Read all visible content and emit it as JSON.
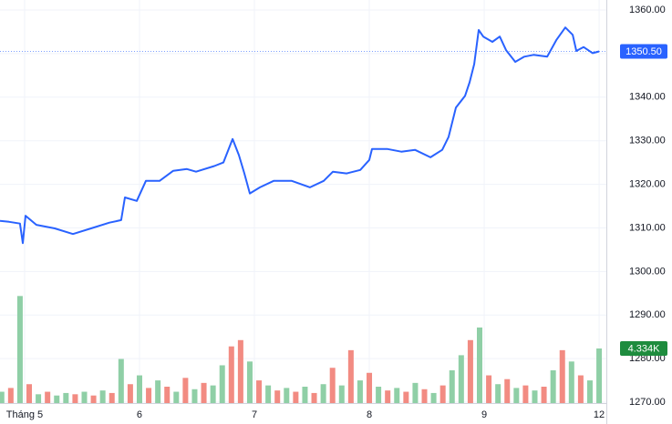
{
  "chart_data": {
    "type": "line",
    "color": "#2962ff",
    "x": [
      -0.214,
      -0.135,
      -0.04,
      -0.016,
      0.008,
      0.103,
      0.262,
      0.421,
      0.579,
      0.738,
      0.841,
      0.873,
      0.976,
      1.056,
      1.175,
      1.294,
      1.413,
      1.492,
      1.651,
      1.73,
      1.81,
      1.865,
      1.913,
      1.96,
      2.048,
      2.167,
      2.325,
      2.484,
      2.603,
      2.683,
      2.802,
      2.921,
      3,
      3.024,
      3.159,
      3.278,
      3.397,
      3.532,
      3.635,
      3.69,
      3.754,
      3.833,
      3.873,
      3.913,
      3.952,
      3.992,
      4.071,
      4.135,
      4.19,
      4.27,
      4.349,
      4.429,
      4.548,
      4.627,
      4.706,
      4.77,
      4.802,
      4.865,
      4.944,
      5
    ],
    "values": [
      1311.6,
      1311.4,
      1311,
      1306.5,
      1312.8,
      1310.7,
      1309.9,
      1308.6,
      1309.9,
      1311.2,
      1311.8,
      1317,
      1316.2,
      1320.8,
      1320.8,
      1323.1,
      1323.5,
      1322.9,
      1324.2,
      1325,
      1330.4,
      1326.7,
      1322.5,
      1317.9,
      1319.3,
      1320.8,
      1320.8,
      1319.3,
      1320.8,
      1322.9,
      1322.5,
      1323.3,
      1325.6,
      1328.1,
      1328.1,
      1327.5,
      1327.9,
      1326.2,
      1327.9,
      1330.9,
      1337.6,
      1340.3,
      1343.4,
      1347.6,
      1355.4,
      1353.9,
      1352.7,
      1353.9,
      1350.8,
      1348.1,
      1349.3,
      1349.7,
      1349.3,
      1353.1,
      1356,
      1354.3,
      1350.6,
      1351.5,
      1350.1,
      1350.5
    ],
    "xlim": [
      -0.214,
      5.063
    ],
    "xticks": [
      {
        "value": 0,
        "label": "Tháng 5"
      },
      {
        "value": 1,
        "label": "6"
      },
      {
        "value": 2,
        "label": "7"
      },
      {
        "value": 3,
        "label": "8"
      },
      {
        "value": 4,
        "label": "9"
      },
      {
        "value": 5,
        "label": "12"
      }
    ],
    "ylim": [
      1269.8,
      1362.3
    ],
    "yticks": [
      {
        "value": 1270,
        "label": "1270.00"
      },
      {
        "value": 1280,
        "label": "1280.00"
      },
      {
        "value": 1290,
        "label": "1290.00"
      },
      {
        "value": 1300,
        "label": "1300.00"
      },
      {
        "value": 1310,
        "label": "1310.00"
      },
      {
        "value": 1320,
        "label": "1320.00"
      },
      {
        "value": 1330,
        "label": "1330.00"
      },
      {
        "value": 1340,
        "label": "1340.00"
      },
      {
        "value": 1350,
        "label": "1350.00"
      },
      {
        "value": 1360,
        "label": "1360.00"
      }
    ],
    "grid": true,
    "price_marker": {
      "value": 1350.5,
      "label": "1350.50"
    },
    "y2lim": [
      0,
      32000
    ],
    "volume_marker": {
      "value": 4334,
      "label": "4.334K",
      "color": "#1e8c3e"
    },
    "volume": {
      "x": [
        -0.2,
        -0.12,
        -0.04,
        0.04,
        0.12,
        0.2,
        0.28,
        0.36,
        0.44,
        0.52,
        0.6,
        0.68,
        0.76,
        0.84,
        0.92,
        1.0,
        1.08,
        1.16,
        1.24,
        1.32,
        1.4,
        1.48,
        1.56,
        1.64,
        1.72,
        1.8,
        1.88,
        1.96,
        2.04,
        2.12,
        2.2,
        2.28,
        2.36,
        2.44,
        2.52,
        2.6,
        2.68,
        2.76,
        2.84,
        2.92,
        3.0,
        3.08,
        3.16,
        3.24,
        3.32,
        3.4,
        3.48,
        3.56,
        3.64,
        3.72,
        3.8,
        3.88,
        3.96,
        4.04,
        4.12,
        4.2,
        4.28,
        4.36,
        4.44,
        4.52,
        4.6,
        4.68,
        4.76,
        4.84,
        4.92,
        5.0
      ],
      "values": [
        900,
        1200,
        8500,
        1500,
        700,
        900,
        600,
        800,
        700,
        900,
        600,
        1000,
        800,
        3500,
        1500,
        2200,
        1200,
        1800,
        1300,
        900,
        2000,
        1100,
        1600,
        1400,
        3000,
        4500,
        5000,
        3300,
        1800,
        1400,
        1000,
        1200,
        900,
        1300,
        800,
        1500,
        2800,
        1400,
        4200,
        1800,
        2400,
        1300,
        1000,
        1200,
        900,
        1600,
        1100,
        800,
        1400,
        2600,
        3800,
        5000,
        6000,
        2200,
        1500,
        1900,
        1200,
        1400,
        1000,
        1300,
        2600,
        4200,
        3300,
        2200,
        1800,
        4334
      ],
      "colors": [
        "#8fcfa6",
        "#f28b82",
        "#8fcfa6",
        "#f28b82",
        "#8fcfa6",
        "#f28b82",
        "#8fcfa6",
        "#8fcfa6",
        "#f28b82",
        "#8fcfa6",
        "#f28b82",
        "#8fcfa6",
        "#f28b82",
        "#8fcfa6",
        "#f28b82",
        "#8fcfa6",
        "#f28b82",
        "#8fcfa6",
        "#f28b82",
        "#8fcfa6",
        "#f28b82",
        "#8fcfa6",
        "#f28b82",
        "#8fcfa6",
        "#8fcfa6",
        "#f28b82",
        "#f28b82",
        "#8fcfa6",
        "#f28b82",
        "#8fcfa6",
        "#f28b82",
        "#8fcfa6",
        "#f28b82",
        "#8fcfa6",
        "#f28b82",
        "#8fcfa6",
        "#f28b82",
        "#8fcfa6",
        "#f28b82",
        "#8fcfa6",
        "#f28b82",
        "#8fcfa6",
        "#f28b82",
        "#8fcfa6",
        "#f28b82",
        "#8fcfa6",
        "#f28b82",
        "#8fcfa6",
        "#f28b82",
        "#8fcfa6",
        "#8fcfa6",
        "#f28b82",
        "#8fcfa6",
        "#f28b82",
        "#8fcfa6",
        "#f28b82",
        "#8fcfa6",
        "#f28b82",
        "#8fcfa6",
        "#f28b82",
        "#8fcfa6",
        "#f28b82",
        "#8fcfa6",
        "#f28b82",
        "#8fcfa6",
        "#8fcfa6"
      ]
    }
  }
}
